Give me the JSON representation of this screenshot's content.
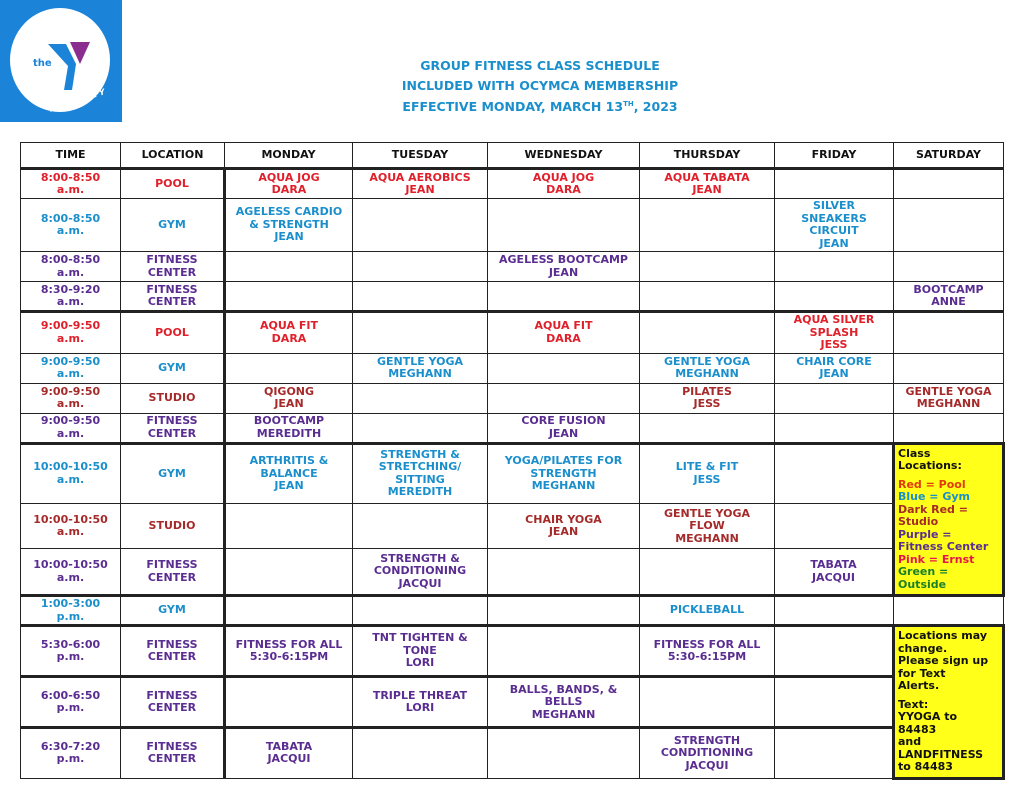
{
  "logo": {
    "text": "the",
    "tagline": "FIND YOUR Y",
    "colors": {
      "background": "#1b84d8",
      "accent": "#8b2d8f"
    }
  },
  "title": {
    "line1": "GROUP FITNESS CLASS SCHEDULE",
    "line2": "INCLUDED WITH OCYMCA MEMBERSHIP",
    "line3_pre": "EFFECTIVE MONDAY, MARCH 13",
    "line3_sup": "TH",
    "line3_post": ", 2023"
  },
  "colors": {
    "red": "#e0202a",
    "blue": "#1a8fcc",
    "purple": "#5a2d91",
    "darkred": "#a52a2a",
    "yellow": "#ffff1a"
  },
  "headers": [
    "TIME",
    "LOCATION",
    "MONDAY",
    "TUESDAY",
    "WEDNESDAY",
    "THURSDAY",
    "FRIDAY",
    "SATURDAY"
  ],
  "rows": [
    {
      "time": "8:00-8:50\na.m.",
      "location": "POOL",
      "color": "red",
      "cells": [
        "AQUA JOG\nDARA",
        "AQUA AEROBICS\nJEAN",
        "AQUA JOG\nDARA",
        "AQUA TABATA\nJEAN",
        "",
        ""
      ]
    },
    {
      "time": "8:00-8:50\na.m.",
      "location": "GYM",
      "color": "blue",
      "cells": [
        "AGELESS CARDIO\n& STRENGTH\nJEAN",
        "",
        "",
        "",
        "SILVER\nSNEAKERS\nCIRCUIT\nJEAN",
        ""
      ]
    },
    {
      "time": "8:00-8:50\na.m.",
      "location": "FITNESS\nCENTER",
      "color": "purple",
      "cells": [
        "",
        "",
        "AGELESS BOOTCAMP\nJEAN",
        "",
        "",
        ""
      ]
    },
    {
      "time": "8:30-9:20\na.m.",
      "location": "FITNESS\nCENTER",
      "color": "purple",
      "cells": [
        "",
        "",
        "",
        "",
        "",
        "BOOTCAMP\nANNE"
      ]
    },
    {
      "time": "9:00-9:50\na.m.",
      "location": "POOL",
      "color": "red",
      "thick": true,
      "cells": [
        "AQUA FIT\nDARA",
        "",
        "AQUA FIT\nDARA",
        "",
        "AQUA SILVER\nSPLASH\nJESS",
        ""
      ]
    },
    {
      "time": "9:00-9:50\na.m.",
      "location": "GYM",
      "color": "blue",
      "cells": [
        "",
        "GENTLE YOGA\nMEGHANN",
        "",
        "GENTLE YOGA\nMEGHANN",
        "CHAIR CORE\nJEAN",
        ""
      ]
    },
    {
      "time": "9:00-9:50\na.m.",
      "location": "STUDIO",
      "color": "darkred",
      "cells": [
        "QIGONG\nJEAN",
        "",
        "",
        "PILATES\nJESS",
        "",
        "GENTLE YOGA\nMEGHANN"
      ]
    },
    {
      "time": "9:00-9:50\na.m.",
      "location": "FITNESS\nCENTER",
      "color": "purple",
      "cells": [
        "BOOTCAMP\nMEREDITH",
        "",
        "CORE FUSION\nJEAN",
        "",
        "",
        ""
      ]
    },
    {
      "time": "10:00-10:50\na.m.",
      "location": "GYM",
      "color": "blue",
      "thick": true,
      "cells": [
        "ARTHRITIS &\nBALANCE\nJEAN",
        "STRENGTH &\nSTRETCHING/\nSITTING\nMEREDITH",
        "YOGA/PILATES FOR\nSTRENGTH\nMEGHANN",
        "LITE & FIT\nJESS",
        ""
      ],
      "note": "legend"
    },
    {
      "time": "10:00-10:50\na.m.",
      "location": "STUDIO",
      "color": "darkred",
      "cells": [
        "",
        "",
        "CHAIR YOGA\nJEAN",
        "GENTLE YOGA\nFLOW\nMEGHANN",
        ""
      ]
    },
    {
      "time": "10:00-10:50\na.m.",
      "location": "FITNESS\nCENTER",
      "color": "purple",
      "cells": [
        "",
        "STRENGTH &\nCONDITIONING\nJACQUI",
        "",
        "",
        "TABATA\nJACQUI"
      ]
    },
    {
      "time": "1:00-3:00\np.m.",
      "location": "GYM",
      "color": "blue",
      "thick": true,
      "cells": [
        "",
        "",
        "",
        "PICKLEBALL",
        "",
        ""
      ]
    },
    {
      "time": "5:30-6:00\np.m.",
      "location": "FITNESS\nCENTER",
      "color": "purple",
      "thick": true,
      "cells": [
        "FITNESS FOR ALL\n5:30-6:15PM",
        "TNT TIGHTEN &\nTONE\nLORI",
        "",
        "FITNESS FOR ALL\n5:30-6:15PM",
        ""
      ],
      "note": "alerts"
    },
    {
      "time": "6:00-6:50\np.m.",
      "location": "FITNESS\nCENTER",
      "color": "purple",
      "thick": true,
      "cells": [
        "",
        "TRIPLE THREAT\nLORI",
        "BALLS, BANDS, &\nBELLS\nMEGHANN",
        "",
        ""
      ]
    },
    {
      "time": "6:30-7:20\np.m.",
      "location": "FITNESS\nCENTER",
      "color": "purple",
      "thick": true,
      "cells": [
        "TABATA\nJACQUI",
        "",
        "",
        "STRENGTH\nCONDITIONING\nJACQUI",
        ""
      ]
    }
  ],
  "legend": {
    "heading": "Class\nLocations:",
    "items": [
      {
        "text": "Red = Pool",
        "color": "orange"
      },
      {
        "text": "Blue = Gym",
        "color": "blue"
      },
      {
        "text": "Dark Red =\nStudio",
        "color": "darkred"
      },
      {
        "text": "Purple =\nFitness Center",
        "color": "purple"
      },
      {
        "text": "Pink = Ernst",
        "color": "pink"
      },
      {
        "text": "Green =\nOutside",
        "color": "green"
      }
    ]
  },
  "alerts": {
    "line1": "Locations may\nchange.\nPlease sign up\nfor Text\nAlerts.",
    "line2": "Text:\nYYOGA to\n84483\nand\nLANDFITNESS\nto 84483"
  }
}
